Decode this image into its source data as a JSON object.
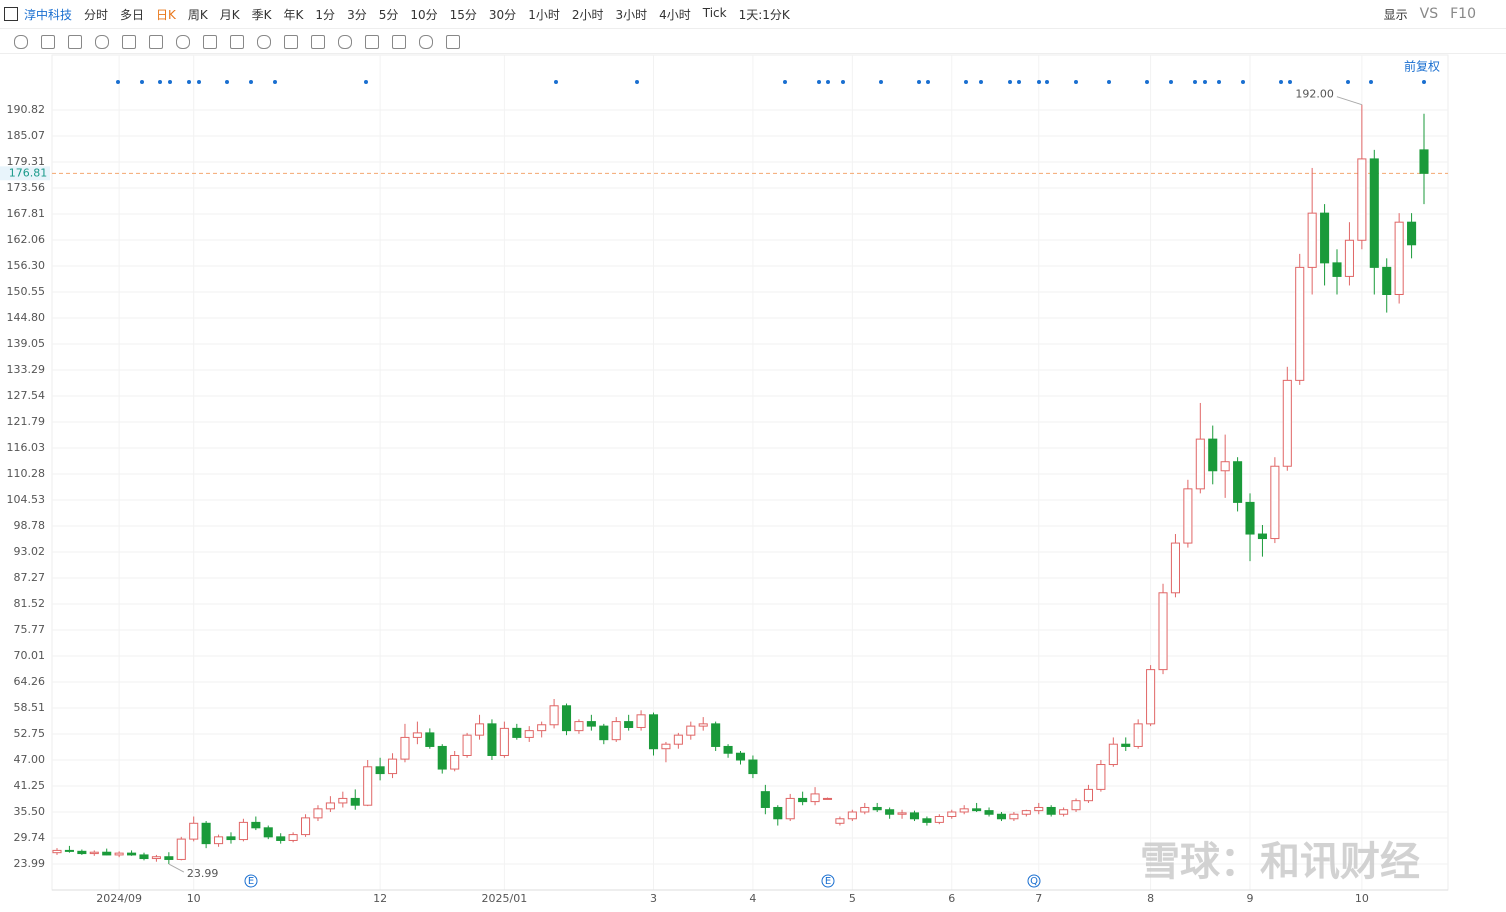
{
  "toolbar": {
    "stock": "淳中科技",
    "periods": [
      "分时",
      "多日",
      "日K",
      "周K",
      "月K",
      "季K",
      "年K",
      "1分",
      "3分",
      "5分",
      "10分",
      "15分",
      "30分",
      "1小时",
      "2小时",
      "3小时",
      "4小时",
      "Tick",
      "1天:1分K"
    ],
    "active_period": "日K",
    "display": "显示",
    "vs": "VS",
    "f10": "F10",
    "adjust": "前复权",
    "watermark": "雪球：和讯财经"
  },
  "chart_data": {
    "type": "candlestick",
    "categories": [
      null,
      null,
      null,
      null,
      null,
      "2024/09",
      null,
      null,
      null,
      null,
      null,
      "10",
      null,
      null,
      null,
      null,
      null,
      null,
      null,
      null,
      null,
      null,
      null,
      null,
      null,
      null,
      "12",
      null,
      null,
      null,
      null,
      null,
      null,
      null,
      null,
      null,
      "2025/01",
      null,
      null,
      null,
      null,
      null,
      null,
      null,
      null,
      null,
      null,
      null,
      "3",
      null,
      null,
      null,
      null,
      null,
      null,
      null,
      "4",
      null,
      null,
      null,
      null,
      null,
      null,
      null,
      "5",
      null,
      null,
      null,
      null,
      null,
      null,
      null,
      "6",
      null,
      null,
      null,
      null,
      null,
      null,
      "7",
      null,
      null,
      null,
      null,
      null,
      null,
      null,
      null,
      "8",
      null,
      null,
      null,
      null,
      null,
      null,
      null,
      "9",
      null,
      null,
      null,
      null,
      null,
      null,
      null,
      null,
      "10",
      null,
      null,
      null,
      null,
      null
    ],
    "ohlc": [
      [
        26.5,
        27.5,
        26,
        27
      ],
      [
        27,
        28,
        26.5,
        26.8
      ],
      [
        26.8,
        27.2,
        26,
        26.3
      ],
      [
        26.3,
        27,
        25.8,
        26.6
      ],
      [
        26.6,
        27.4,
        25.9,
        26
      ],
      [
        26,
        26.8,
        25.5,
        26.4
      ],
      [
        26.4,
        27,
        25.8,
        26
      ],
      [
        26,
        26.5,
        24.8,
        25.2
      ],
      [
        25.2,
        26,
        24.5,
        25.6
      ],
      [
        25.6,
        26.6,
        23.99,
        25
      ],
      [
        25,
        30,
        24.8,
        29.5
      ],
      [
        29.5,
        34.5,
        29,
        33
      ],
      [
        33,
        33.5,
        27.5,
        28.5
      ],
      [
        28.5,
        30.5,
        27.8,
        30
      ],
      [
        30,
        31,
        28.5,
        29.4
      ],
      [
        29.4,
        34,
        29,
        33.2
      ],
      [
        33.2,
        34.5,
        31.5,
        32
      ],
      [
        32,
        32.5,
        29.5,
        30
      ],
      [
        30,
        30.8,
        28.5,
        29.2
      ],
      [
        29.2,
        31,
        28.8,
        30.5
      ],
      [
        30.5,
        35,
        30,
        34.2
      ],
      [
        34.2,
        37,
        33.5,
        36.2
      ],
      [
        36.2,
        39,
        35.5,
        37.5
      ],
      [
        37.5,
        40,
        36.5,
        38.5
      ],
      [
        38.5,
        40.5,
        36,
        37
      ],
      [
        37,
        47,
        36.8,
        45.5
      ],
      [
        45.5,
        47.5,
        42.5,
        44
      ],
      [
        44,
        48.5,
        43,
        47.2
      ],
      [
        47.2,
        55,
        46.5,
        52
      ],
      [
        52,
        55.5,
        50.5,
        53
      ],
      [
        53,
        54,
        49.5,
        50
      ],
      [
        50,
        50.5,
        44,
        45
      ],
      [
        45,
        49,
        44.5,
        48
      ],
      [
        48,
        53,
        47.5,
        52.5
      ],
      [
        52.5,
        57,
        51.5,
        55
      ],
      [
        55,
        56,
        47,
        48
      ],
      [
        48,
        55.5,
        47.5,
        54
      ],
      [
        54,
        55,
        51.5,
        52
      ],
      [
        52,
        54.5,
        51,
        53.5
      ],
      [
        53.5,
        55.5,
        52,
        54.8
      ],
      [
        54.8,
        60.5,
        54,
        59
      ],
      [
        59,
        59.5,
        52.5,
        53.5
      ],
      [
        53.5,
        56,
        52.8,
        55.5
      ],
      [
        55.5,
        57,
        53.5,
        54.5
      ],
      [
        54.5,
        55,
        50.5,
        51.5
      ],
      [
        51.5,
        56.5,
        51,
        55.5
      ],
      [
        55.5,
        57,
        53.5,
        54.2
      ],
      [
        54.2,
        58,
        53.5,
        57
      ],
      [
        57,
        57.5,
        48,
        49.5
      ],
      [
        49.5,
        51,
        46.5,
        50.5
      ],
      [
        50.5,
        53,
        49.5,
        52.5
      ],
      [
        52.5,
        55.5,
        51.5,
        54.5
      ],
      [
        54.5,
        56.5,
        53.5,
        55
      ],
      [
        55,
        55.5,
        49,
        50
      ],
      [
        50,
        50.5,
        47.5,
        48.5
      ],
      [
        48.5,
        49,
        46,
        47
      ],
      [
        47,
        48,
        43,
        44
      ],
      [
        40,
        41.5,
        35,
        36.5
      ],
      [
        36.5,
        37,
        32.5,
        34
      ],
      [
        34,
        39.5,
        33.5,
        38.5
      ],
      [
        38.5,
        40,
        37,
        37.8
      ],
      [
        37.8,
        41,
        37,
        39.5
      ],
      [
        38.5,
        38.7,
        38.3,
        38.5
      ],
      [
        33,
        34.5,
        32.5,
        34
      ],
      [
        34,
        36,
        33.5,
        35.5
      ],
      [
        35.5,
        37.5,
        35,
        36.5
      ],
      [
        36.5,
        37.5,
        35.5,
        36
      ],
      [
        36,
        36.5,
        34,
        35
      ],
      [
        35,
        36,
        34,
        35.3
      ],
      [
        35.3,
        35.8,
        33.5,
        34
      ],
      [
        34,
        34.5,
        32.5,
        33.2
      ],
      [
        33.2,
        35,
        32.8,
        34.5
      ],
      [
        34.5,
        36,
        34,
        35.5
      ],
      [
        35.5,
        37,
        35,
        36.2
      ],
      [
        36.2,
        37.5,
        35.5,
        35.8
      ],
      [
        35.8,
        36.5,
        34.5,
        35
      ],
      [
        35,
        35.5,
        33.5,
        34
      ],
      [
        34,
        35.5,
        33.5,
        35
      ],
      [
        35,
        36,
        34.5,
        35.8
      ],
      [
        35.8,
        37.5,
        35,
        36.5
      ],
      [
        36.5,
        37,
        34.5,
        35
      ],
      [
        35,
        36.5,
        34.5,
        36
      ],
      [
        36,
        38.5,
        35.5,
        38
      ],
      [
        38,
        41.5,
        37.5,
        40.5
      ],
      [
        40.5,
        47,
        40,
        46
      ],
      [
        46,
        52,
        45.5,
        50.5
      ],
      [
        50.5,
        52,
        49,
        50
      ],
      [
        50,
        56,
        49.5,
        55
      ],
      [
        55,
        68,
        54.5,
        67
      ],
      [
        67,
        86,
        66,
        84
      ],
      [
        84,
        97,
        83,
        95
      ],
      [
        95,
        109,
        94,
        107
      ],
      [
        107,
        126,
        106,
        118
      ],
      [
        118,
        121,
        108,
        111
      ],
      [
        111,
        119,
        105,
        113
      ],
      [
        113,
        114,
        102,
        104
      ],
      [
        104,
        106,
        91,
        97
      ],
      [
        97,
        99,
        92,
        96
      ],
      [
        96,
        114,
        95,
        112
      ],
      [
        112,
        134,
        111,
        131
      ],
      [
        131,
        159,
        130,
        156
      ],
      [
        156,
        178,
        150,
        168
      ],
      [
        168,
        170,
        152,
        157
      ],
      [
        157,
        160,
        150,
        154
      ],
      [
        154,
        166,
        152,
        162
      ],
      [
        162,
        192,
        160,
        180
      ],
      [
        180,
        182,
        150,
        156
      ],
      [
        156,
        158,
        146,
        150
      ],
      [
        150,
        168,
        148,
        166
      ],
      [
        166,
        168,
        158,
        161
      ],
      [
        182,
        190,
        170,
        176.81
      ]
    ],
    "up_color": "#e06666",
    "down_color": "#1a9a3a",
    "ylim": [
      18.24,
      202.99
    ],
    "yticks": [
      23.99,
      29.74,
      {
        "value": 35.5,
        "label": "35.50"
      },
      41.25,
      {
        "value": 47,
        "label": "47.00"
      },
      52.75,
      58.51,
      64.26,
      70.01,
      75.77,
      81.52,
      87.27,
      93.02,
      98.78,
      104.53,
      110.28,
      116.03,
      121.79,
      127.54,
      133.29,
      139.05,
      {
        "value": 144.8,
        "label": "144.80"
      },
      150.55,
      {
        "value": 156.3,
        "label": "156.30"
      },
      162.06,
      167.81,
      173.56,
      179.31,
      185.07,
      190.82
    ],
    "grid": true,
    "last_price": 176.81,
    "max_label": {
      "value": 192,
      "label": "192.00"
    },
    "min_label": 23.99,
    "event_labels": [
      "E",
      "E",
      "Q"
    ]
  }
}
